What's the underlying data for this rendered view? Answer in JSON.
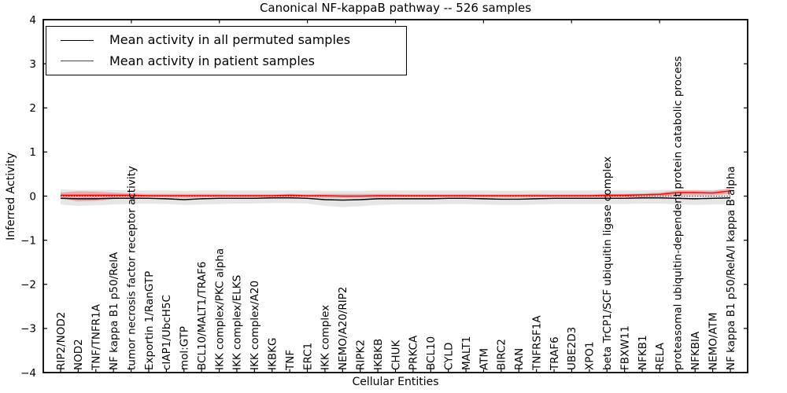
{
  "figure": {
    "title": "Canonical NF-kappaB pathway -- 526 samples",
    "xlabel": "Cellular Entities",
    "ylabel": "Inferred Activity"
  },
  "legend": {
    "items": [
      {
        "label": "Mean activity in all permuted samples",
        "color": "#000000"
      },
      {
        "label": "Mean activity in patient samples",
        "color": "#ff0000"
      }
    ]
  },
  "colors": {
    "permuted_line": "#000000",
    "patient_line": "#ff0000",
    "permuted_band": "#e6e6e6",
    "patient_band": "rgba(255,0,0,0.25)",
    "frame": "#000000",
    "background": "#ffffff"
  },
  "chart_data": {
    "type": "line",
    "title": "Canonical NF-kappaB pathway -- 526 samples",
    "xlabel": "Cellular Entities",
    "ylabel": "Inferred Activity",
    "ylim": [
      -4,
      4
    ],
    "yticks": [
      4,
      3,
      2,
      1,
      0,
      -1,
      -2,
      -3,
      -4
    ],
    "ytick_labels": [
      "4",
      "3",
      "2",
      "1",
      "0",
      "−1",
      "−2",
      "−3",
      "−4"
    ],
    "grid": false,
    "legend_position": "upper left",
    "zero_line_style": "dotted",
    "categories": [
      "RIP2/NOD2",
      "NOD2",
      "TNF/TNFR1A",
      "NF kappa B1 p50/RelA",
      "tumor necrosis factor receptor activity",
      "Exportin 1/RanGTP",
      "cIAP1/UbcH5C",
      "mol:GTP",
      "BCL10/MALT1/TRAF6",
      "IKK complex/PKC alpha",
      "IKK complex/ELKS",
      "IKK complex/A20",
      "IKBKG",
      "TNF",
      "ERC1",
      "IKK complex",
      "NEMO/A20/RIP2",
      "RIPK2",
      "IKBKB",
      "CHUK",
      "PRKCA",
      "BCL10",
      "CYLD",
      "MALT1",
      "ATM",
      "BIRC2",
      "RAN",
      "TNFRSF1A",
      "TRAF6",
      "UBE2D3",
      "XPO1",
      "beta TrCP1/SCF ubiquitin ligase complex",
      "FBXW11",
      "NFKB1",
      "RELA",
      "proteasomal ubiquitin-dependent protein catabolic process",
      "NFKBIA",
      "NEMO/ATM",
      "NF kappa B1 p50/RelA/I kappa B alpha"
    ],
    "series": [
      {
        "name": "Mean activity in all permuted samples",
        "color": "#000000",
        "values": [
          -0.05,
          -0.06,
          -0.06,
          -0.05,
          -0.05,
          -0.05,
          -0.06,
          -0.08,
          -0.06,
          -0.05,
          -0.05,
          -0.05,
          -0.04,
          -0.04,
          -0.05,
          -0.08,
          -0.09,
          -0.08,
          -0.06,
          -0.06,
          -0.06,
          -0.06,
          -0.05,
          -0.05,
          -0.06,
          -0.07,
          -0.07,
          -0.06,
          -0.05,
          -0.05,
          -0.05,
          -0.05,
          -0.05,
          -0.04,
          -0.04,
          -0.05,
          -0.06,
          -0.05,
          -0.04
        ]
      },
      {
        "name": "Mean activity in patient samples",
        "color": "#ff0000",
        "values": [
          0.02,
          0.02,
          0.02,
          0.02,
          0.02,
          0.01,
          0.01,
          0.01,
          0.01,
          0.01,
          0.01,
          0.01,
          0.01,
          0.02,
          0.01,
          0.01,
          0.0,
          0.0,
          0.01,
          0.01,
          0.01,
          0.01,
          0.01,
          0.01,
          0.01,
          0.01,
          0.01,
          0.01,
          0.01,
          0.01,
          0.01,
          0.02,
          0.02,
          0.03,
          0.04,
          0.08,
          0.08,
          0.07,
          0.12
        ]
      }
    ],
    "bands": [
      {
        "name": "permuted-range",
        "color": "#e6e6e6",
        "lower": [
          -0.19,
          -0.22,
          -0.21,
          -0.19,
          -0.18,
          -0.17,
          -0.18,
          -0.2,
          -0.19,
          -0.18,
          -0.17,
          -0.17,
          -0.16,
          -0.16,
          -0.17,
          -0.22,
          -0.25,
          -0.23,
          -0.2,
          -0.19,
          -0.19,
          -0.19,
          -0.18,
          -0.18,
          -0.19,
          -0.2,
          -0.2,
          -0.19,
          -0.18,
          -0.18,
          -0.18,
          -0.18,
          -0.18,
          -0.17,
          -0.17,
          -0.19,
          -0.2,
          -0.19,
          -0.18
        ],
        "upper": [
          0.15,
          0.14,
          0.14,
          0.14,
          0.13,
          0.13,
          0.13,
          0.12,
          0.13,
          0.13,
          0.13,
          0.13,
          0.13,
          0.13,
          0.13,
          0.12,
          0.12,
          0.12,
          0.13,
          0.13,
          0.13,
          0.13,
          0.13,
          0.13,
          0.13,
          0.12,
          0.12,
          0.13,
          0.13,
          0.13,
          0.13,
          0.13,
          0.13,
          0.13,
          0.14,
          0.14,
          0.14,
          0.14,
          0.14
        ]
      },
      {
        "name": "patient-range",
        "color": "rgba(255,0,0,0.25)",
        "lower": [
          -0.05,
          -0.12,
          -0.11,
          -0.07,
          -0.04,
          -0.03,
          -0.03,
          -0.04,
          -0.03,
          -0.03,
          -0.03,
          -0.03,
          -0.03,
          -0.03,
          -0.03,
          -0.04,
          -0.05,
          -0.04,
          -0.04,
          -0.03,
          -0.03,
          -0.03,
          -0.03,
          -0.03,
          -0.03,
          -0.03,
          -0.03,
          -0.03,
          -0.03,
          -0.03,
          -0.03,
          -0.03,
          -0.03,
          -0.02,
          -0.01,
          0.02,
          0.02,
          0.02,
          0.05
        ],
        "upper": [
          0.08,
          0.11,
          0.1,
          0.08,
          0.06,
          0.05,
          0.05,
          0.05,
          0.05,
          0.05,
          0.04,
          0.04,
          0.04,
          0.05,
          0.04,
          0.05,
          0.05,
          0.05,
          0.05,
          0.05,
          0.04,
          0.04,
          0.04,
          0.04,
          0.04,
          0.04,
          0.04,
          0.05,
          0.04,
          0.04,
          0.04,
          0.05,
          0.05,
          0.06,
          0.08,
          0.13,
          0.13,
          0.12,
          0.18
        ]
      }
    ]
  }
}
